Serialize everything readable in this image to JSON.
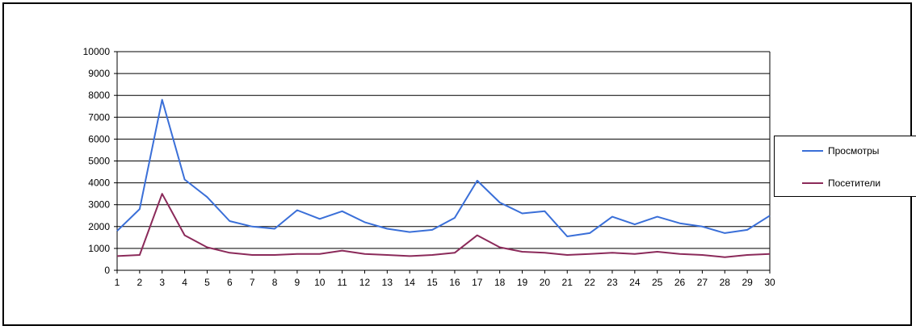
{
  "chart_data": {
    "type": "line",
    "title": "",
    "xlabel": "",
    "ylabel": "",
    "x": [
      1,
      2,
      3,
      4,
      5,
      6,
      7,
      8,
      9,
      10,
      11,
      12,
      13,
      14,
      15,
      16,
      17,
      18,
      19,
      20,
      21,
      22,
      23,
      24,
      25,
      26,
      27,
      28,
      29,
      30
    ],
    "ylim": [
      0,
      10000
    ],
    "yticks": [
      0,
      1000,
      2000,
      3000,
      4000,
      5000,
      6000,
      7000,
      8000,
      9000,
      10000
    ],
    "grid": true,
    "legend_position": "right",
    "series": [
      {
        "name": "Просмотры",
        "color": "#3a6fd8",
        "values": [
          1800,
          2800,
          7800,
          4150,
          3350,
          2250,
          2000,
          1900,
          2750,
          2350,
          2700,
          2200,
          1900,
          1750,
          1850,
          2400,
          4100,
          3100,
          2600,
          2700,
          1550,
          1700,
          2450,
          2100,
          2450,
          2150,
          2000,
          1700,
          1850,
          2500
        ]
      },
      {
        "name": "Посетители",
        "color": "#8b2a5a",
        "values": [
          650,
          700,
          3500,
          1600,
          1050,
          800,
          700,
          700,
          750,
          750,
          900,
          750,
          700,
          650,
          700,
          800,
          1600,
          1050,
          850,
          800,
          700,
          750,
          800,
          750,
          850,
          750,
          700,
          600,
          700,
          750
        ]
      }
    ]
  }
}
